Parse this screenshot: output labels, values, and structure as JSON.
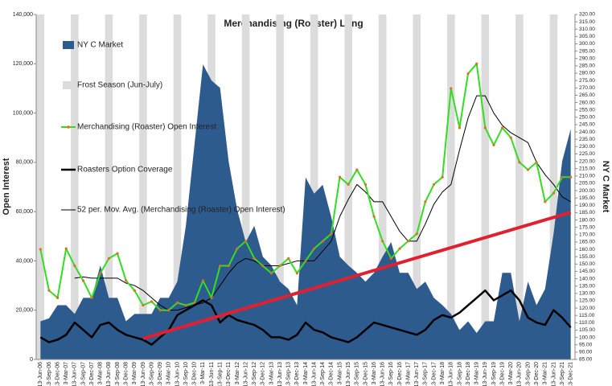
{
  "chart_data": {
    "type": "combo",
    "title": "Merchandising (Roaster) Long",
    "y_label": "Open Interest",
    "y2_label": "NY C Market",
    "categories": [
      "13-Jun-06",
      "13-Sep-06",
      "13-Dec-06",
      "3-Mar-07",
      "13-Jun-07",
      "13-Sep-07",
      "13-Dec-07",
      "3-Mar-08",
      "13-Jun-08",
      "13-Sep-08",
      "13-Dec-08",
      "3-Mar-09",
      "13-Jun-09",
      "13-Sep-09",
      "13-Dec-09",
      "3-Mar-10",
      "13-Jun-10",
      "13-Sep-10",
      "13-Dec-10",
      "3-Mar-11",
      "13-Jun-11",
      "13-Sep-11",
      "13-Dec-11",
      "3-Mar-12",
      "13-Jun-12",
      "13-Sep-12",
      "13-Dec-12",
      "3-Mar-13",
      "13-Jun-13",
      "13-Sep-13",
      "13-Dec-13",
      "3-Mar-14",
      "13-Jun-14",
      "13-Sep-14",
      "13-Dec-14",
      "3-Mar-15",
      "13-Jun-15",
      "13-Sep-15",
      "13-Dec-15",
      "3-Mar-16",
      "13-Jun-16",
      "13-Sep-16",
      "13-Dec-16",
      "3-Mar-17",
      "13-Jun-17",
      "13-Sep-17",
      "13-Dec-17",
      "3-Mar-18",
      "13-Jun-18",
      "13-Sep-18",
      "13-Dec-18",
      "3-Mar-19",
      "13-Jun-19",
      "13-Sep-19",
      "13-Dec-19",
      "3-Mar-20",
      "13-Jun-20",
      "13-Sep-20",
      "13-Dec-20",
      "3-Mar-21",
      "13-Jun-21",
      "13-Sep-21",
      "13-Dec-21"
    ],
    "series": [
      {
        "name": "NY C Market",
        "kind": "area",
        "axis": "y2",
        "color": "#2e5b8e",
        "values": [
          111,
          113,
          122,
          122,
          116,
          127,
          127,
          149,
          127,
          127,
          111,
          116,
          116,
          116,
          127,
          127,
          138,
          176,
          231,
          286,
          275,
          270,
          220,
          187,
          165,
          176,
          155,
          149,
          138,
          133,
          122,
          209,
          198,
          204,
          182,
          155,
          149,
          144,
          138,
          144,
          155,
          165,
          144,
          144,
          133,
          138,
          127,
          122,
          116,
          105,
          111,
          103,
          111,
          111,
          144,
          144,
          111,
          138,
          122,
          133,
          171,
          220,
          242
        ]
      },
      {
        "name": "Frost Season (Jun-July)",
        "kind": "column",
        "color": "#dcdcdc",
        "values": [
          140000,
          null,
          null,
          null,
          140000,
          null,
          null,
          null,
          140000,
          null,
          null,
          null,
          140000,
          null,
          null,
          null,
          140000,
          null,
          null,
          null,
          140000,
          null,
          null,
          null,
          140000,
          null,
          null,
          null,
          140000,
          null,
          null,
          null,
          140000,
          null,
          null,
          null,
          140000,
          null,
          null,
          null,
          140000,
          null,
          null,
          null,
          140000,
          null,
          null,
          null,
          140000,
          null,
          null,
          null,
          140000,
          null,
          null,
          null,
          140000,
          null,
          null,
          null,
          140000,
          null,
          null
        ]
      },
      {
        "name": "Merchandising (Roaster) Open Interest",
        "kind": "marked-line",
        "color": "#33dd22",
        "marker_color": "#e07020",
        "values": [
          44700,
          28000,
          25000,
          45000,
          38000,
          32000,
          25000,
          35000,
          41000,
          43000,
          32000,
          28000,
          22000,
          23500,
          20000,
          20000,
          23000,
          22000,
          23000,
          32000,
          25000,
          38000,
          38000,
          45000,
          48000,
          41000,
          38000,
          35000,
          38000,
          41000,
          35000,
          40000,
          45000,
          48000,
          51000,
          74000,
          71000,
          77000,
          71000,
          58000,
          48000,
          41000,
          45000,
          48000,
          51000,
          64000,
          71000,
          74000,
          110000,
          94000,
          116000,
          120000,
          94000,
          87000,
          94000,
          90000,
          80000,
          77000,
          80000,
          64000,
          67500,
          74000,
          74000
        ]
      },
      {
        "name": "Roasters Option Coverage",
        "kind": "thick-line",
        "color": "#000000",
        "values": [
          9000,
          7000,
          8000,
          10000,
          15000,
          12000,
          9000,
          14000,
          15000,
          12000,
          10000,
          9000,
          8000,
          6000,
          9000,
          12000,
          18000,
          20000,
          22000,
          24000,
          22000,
          15000,
          18000,
          16000,
          15000,
          14000,
          12000,
          9000,
          9000,
          8000,
          10000,
          15000,
          12000,
          11000,
          9000,
          8000,
          7000,
          9000,
          12000,
          15000,
          14000,
          13000,
          12000,
          11000,
          10000,
          12000,
          16000,
          18000,
          17000,
          19000,
          22000,
          25000,
          28000,
          24000,
          26000,
          28000,
          24000,
          17000,
          15000,
          14000,
          20000,
          17000,
          13000
        ]
      },
      {
        "name": "52 per. Mov. Avg. (Merchandising (Roaster) Open Interest)",
        "kind": "thin-line",
        "color": "#000000",
        "values": [
          null,
          null,
          null,
          null,
          33000,
          33500,
          33000,
          33000,
          33000,
          33000,
          31000,
          30000,
          28000,
          25000,
          22000,
          20000,
          20000,
          21000,
          22000,
          23000,
          25000,
          30000,
          35000,
          39000,
          41000,
          40000,
          38000,
          38000,
          38000,
          39000,
          40000,
          40000,
          40000,
          44000,
          48000,
          58000,
          65000,
          71000,
          68000,
          64000,
          64000,
          58000,
          52000,
          48000,
          48000,
          55000,
          63000,
          68000,
          71000,
          85000,
          98000,
          107000,
          107000,
          100000,
          95000,
          92000,
          90000,
          88000,
          80000,
          75000,
          71000,
          66000,
          64000
        ]
      }
    ],
    "trendline": {
      "color": "#e02030",
      "categories": [
        "13-Jun-09",
        "13-Dec-21"
      ],
      "values": [
        8500,
        59700
      ]
    },
    "ylim": [
      0,
      140000
    ],
    "yticks": [
      0,
      {
        "value": 20000,
        "label": "20,000"
      },
      {
        "value": 40000,
        "label": "40,000"
      },
      {
        "value": 60000,
        "label": "60,000"
      },
      {
        "value": 80000,
        "label": "80,000"
      },
      {
        "value": 100000,
        "label": "100,000"
      },
      {
        "value": 120000,
        "label": "120,000"
      },
      {
        "value": 140000,
        "label": "140,000"
      }
    ],
    "y2lim": [
      85,
      320
    ],
    "y2ticks": [
      {
        "value": 85,
        "label": "85.00"
      },
      {
        "value": 90,
        "label": "90.00"
      },
      {
        "value": 95,
        "label": "95.00"
      },
      {
        "value": 100,
        "label": "100.00"
      },
      {
        "value": 105,
        "label": "105.00"
      },
      {
        "value": 110,
        "label": "110.00"
      },
      {
        "value": 115,
        "label": "115.00"
      },
      {
        "value": 120,
        "label": "120.00"
      },
      {
        "value": 125,
        "label": "125.00"
      },
      {
        "value": 130,
        "label": "130.00"
      },
      {
        "value": 135,
        "label": "135.00"
      },
      {
        "value": 140,
        "label": "140.00"
      },
      {
        "value": 145,
        "label": "145.00"
      },
      {
        "value": 150,
        "label": "150.00"
      },
      {
        "value": 155,
        "label": "155.00"
      },
      {
        "value": 160,
        "label": "160.00"
      },
      {
        "value": 165,
        "label": "165.00"
      },
      {
        "value": 170,
        "label": "170.00"
      },
      {
        "value": 175,
        "label": "175.00"
      },
      {
        "value": 180,
        "label": "180.00"
      },
      {
        "value": 185,
        "label": "185.00"
      },
      {
        "value": 190,
        "label": "190.00"
      },
      {
        "value": 195,
        "label": "195.00"
      },
      {
        "value": 200,
        "label": "200.00"
      },
      {
        "value": 205,
        "label": "205.00"
      },
      {
        "value": 210,
        "label": "210.00"
      },
      {
        "value": 215,
        "label": "215.00"
      },
      {
        "value": 220,
        "label": "220.00"
      },
      {
        "value": 225,
        "label": "225.00"
      },
      {
        "value": 230,
        "label": "230.00"
      },
      {
        "value": 235,
        "label": "235.00"
      },
      {
        "value": 240,
        "label": "240.00"
      },
      {
        "value": 245,
        "label": "245.00"
      },
      {
        "value": 250,
        "label": "250.00"
      },
      {
        "value": 255,
        "label": "255.00"
      },
      {
        "value": 260,
        "label": "260.00"
      },
      {
        "value": 265,
        "label": "265.00"
      },
      {
        "value": 270,
        "label": "270.00"
      },
      {
        "value": 275,
        "label": "275.00"
      },
      {
        "value": 280,
        "label": "280.00"
      },
      {
        "value": 285,
        "label": "285.00"
      },
      {
        "value": 290,
        "label": "290.00"
      },
      {
        "value": 295,
        "label": "295.00"
      },
      {
        "value": 300,
        "label": "300.00"
      },
      {
        "value": 305,
        "label": "305.00"
      },
      {
        "value": 310,
        "label": "310.00"
      },
      {
        "value": 315,
        "label": "315.00"
      },
      {
        "value": 320,
        "label": "320.00"
      }
    ]
  }
}
